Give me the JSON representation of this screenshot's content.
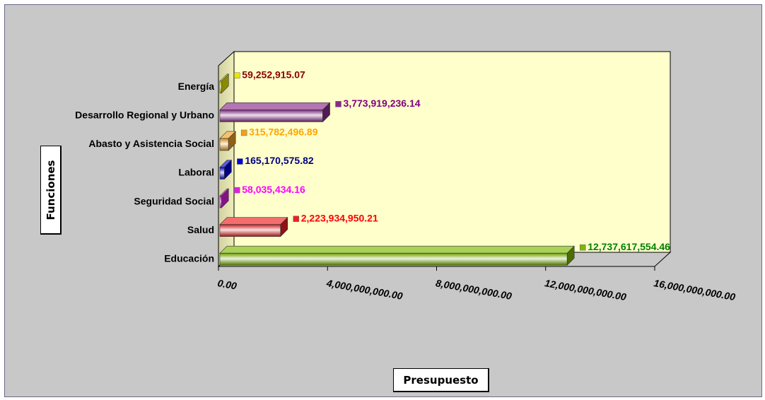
{
  "chart_data": {
    "type": "bar",
    "orientation": "horizontal",
    "xlabel": "Presupuesto",
    "ylabel": "Funciones",
    "xlim": [
      0,
      16000000000
    ],
    "xticks": [
      0,
      4000000000,
      8000000000,
      12000000000,
      16000000000
    ],
    "xtick_labels": [
      "0.00",
      "4,000,000,000.00",
      "8,000,000,000.00",
      "12,000,000,000.00",
      "16,000,000,000.00"
    ],
    "categories": [
      "Energía",
      "Desarrollo Regional y Urbano",
      "Abasto y Asistencia Social",
      "Laboral",
      "Seguridad Social",
      "Salud",
      "Educación"
    ],
    "values": [
      59252915.07,
      3773919236.14,
      315782496.89,
      165170575.82,
      58035434.16,
      2223934950.21,
      12737617554.46
    ],
    "value_labels": [
      "59,252,915.07",
      "3,773,919,236.14",
      "315,782,496.89",
      "165,170,575.82",
      "58,035,434.16",
      "2,223,934,950.21",
      "12,737,617,554.46"
    ],
    "colors": [
      "#e8e800",
      "#8a2b8a",
      "#f0a020",
      "#0000dd",
      "#e020e0",
      "#ee2020",
      "#7db800"
    ],
    "label_colors": [
      "#8b0000",
      "#800080",
      "#ffa500",
      "#000080",
      "#ff00ff",
      "#ff0000",
      "#008000"
    ],
    "plot_background": "#ffffcc",
    "grid": false,
    "legend": "none"
  }
}
